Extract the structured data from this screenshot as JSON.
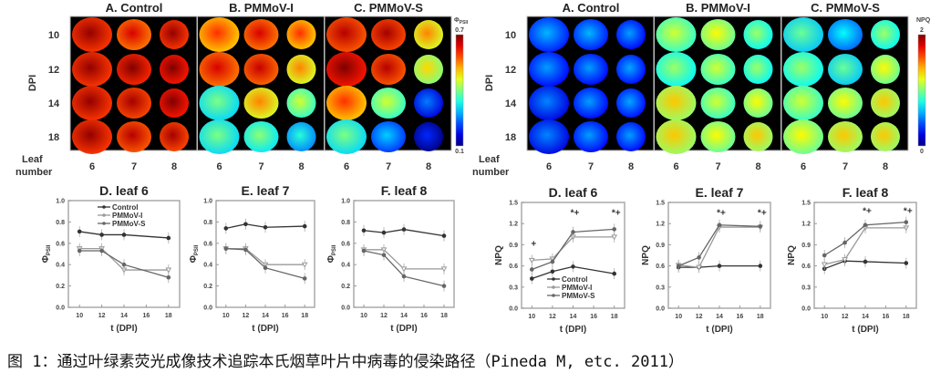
{
  "caption": "图 1：通过叶绿素荧光成像技术追踪本氏烟草叶片中病毒的侵染路径（Pineda M, etc. 2011）",
  "image_panels": [
    {
      "quantity_symbol": "Φ",
      "quantity_subscript": "PSII",
      "colorbar": {
        "max": "0.7",
        "min": "0.1",
        "range": [
          0.1,
          0.7
        ],
        "colormap": "jet"
      },
      "row_label": "DPI",
      "col_label_1": "Leaf",
      "col_label_2": "number",
      "rows": [
        "10",
        "12",
        "14",
        "18"
      ],
      "cols": [
        "6",
        "7",
        "8"
      ],
      "groups": [
        {
          "title": "A. Control",
          "values": [
            [
              0.64,
              0.6,
              0.64
            ],
            [
              0.64,
              0.65,
              0.66
            ],
            [
              0.64,
              0.63,
              0.66
            ],
            [
              0.64,
              0.62,
              0.63
            ]
          ]
        },
        {
          "title": "B. PMMoV-I",
          "values": [
            [
              0.55,
              0.6,
              0.55
            ],
            [
              0.6,
              0.61,
              0.5
            ],
            [
              0.35,
              0.5,
              0.4
            ],
            [
              0.35,
              0.36,
              0.3
            ]
          ]
        },
        {
          "title": "C. PMMoV-S",
          "values": [
            [
              0.62,
              0.63,
              0.5
            ],
            [
              0.66,
              0.62,
              0.45
            ],
            [
              0.55,
              0.4,
              0.2
            ],
            [
              0.35,
              0.25,
              0.15
            ]
          ]
        }
      ]
    },
    {
      "quantity_symbol": "NPQ",
      "quantity_subscript": "",
      "colorbar": {
        "max": "2",
        "min": "0",
        "range": [
          0,
          2
        ],
        "colormap": "jet"
      },
      "row_label": "DPI",
      "col_label_1": "Leaf",
      "col_label_2": "number",
      "rows": [
        "10",
        "12",
        "14",
        "18"
      ],
      "cols": [
        "6",
        "7",
        "8"
      ],
      "groups": [
        {
          "title": "A. Control",
          "values": [
            [
              0.45,
              0.45,
              0.4
            ],
            [
              0.4,
              0.4,
              0.42
            ],
            [
              0.35,
              0.4,
              0.42
            ],
            [
              0.35,
              0.4,
              0.4
            ]
          ]
        },
        {
          "title": "B. PMMoV-I",
          "values": [
            [
              1.0,
              1.1,
              0.9
            ],
            [
              0.9,
              1.0,
              0.9
            ],
            [
              1.2,
              1.0,
              1.1
            ],
            [
              1.2,
              1.1,
              1.2
            ]
          ]
        },
        {
          "title": "C. PMMoV-S",
          "values": [
            [
              0.8,
              0.6,
              0.9
            ],
            [
              0.9,
              0.8,
              1.1
            ],
            [
              1.0,
              1.1,
              1.2
            ],
            [
              1.1,
              1.2,
              1.2
            ]
          ]
        }
      ]
    }
  ],
  "chart_data": [
    {
      "type": "line",
      "title": "D. leaf 6",
      "xlabel": "t (DPI)",
      "ylabel": "Φ",
      "ylabel_sub": "PSII",
      "x": [
        10,
        12,
        14,
        18
      ],
      "xticks": [
        "10",
        "12",
        "14",
        "16",
        "18"
      ],
      "xlim": [
        9,
        19
      ],
      "ylim": [
        0,
        1.0
      ],
      "yticks": [
        "0.0",
        "0.2",
        "0.4",
        "0.6",
        "0.8",
        "1.0"
      ],
      "legend": "top-right",
      "series": [
        {
          "name": "Control",
          "values": [
            0.71,
            0.68,
            0.68,
            0.65
          ]
        },
        {
          "name": "PMMoV-I",
          "values": [
            0.55,
            0.55,
            0.35,
            0.35
          ]
        },
        {
          "name": "PMMoV-S",
          "values": [
            0.53,
            0.53,
            0.4,
            0.28
          ]
        }
      ],
      "annotations": []
    },
    {
      "type": "line",
      "title": "E. leaf 7",
      "xlabel": "t (DPI)",
      "ylabel": "Φ",
      "ylabel_sub": "PSII",
      "x": [
        10,
        12,
        14,
        18
      ],
      "xticks": [
        "10",
        "12",
        "14",
        "16",
        "18"
      ],
      "xlim": [
        9,
        19
      ],
      "ylim": [
        0,
        1.0
      ],
      "yticks": [
        "0.0",
        "0.2",
        "0.4",
        "0.6",
        "0.8",
        "1.0"
      ],
      "series": [
        {
          "name": "Control",
          "values": [
            0.74,
            0.78,
            0.75,
            0.76
          ]
        },
        {
          "name": "PMMoV-I",
          "values": [
            0.55,
            0.55,
            0.4,
            0.4
          ]
        },
        {
          "name": "PMMoV-S",
          "values": [
            0.55,
            0.54,
            0.37,
            0.27
          ]
        }
      ],
      "annotations": []
    },
    {
      "type": "line",
      "title": "F. leaf 8",
      "xlabel": "t (DPI)",
      "ylabel": "Φ",
      "ylabel_sub": "PSII",
      "x": [
        10,
        12,
        14,
        18
      ],
      "xticks": [
        "10",
        "12",
        "14",
        "16",
        "18"
      ],
      "xlim": [
        9,
        19
      ],
      "ylim": [
        0,
        1.0
      ],
      "yticks": [
        "0.0",
        "0.2",
        "0.4",
        "0.6",
        "0.8",
        "1.0"
      ],
      "series": [
        {
          "name": "Control",
          "values": [
            0.72,
            0.7,
            0.73,
            0.67
          ]
        },
        {
          "name": "PMMoV-I",
          "values": [
            0.54,
            0.54,
            0.36,
            0.36
          ]
        },
        {
          "name": "PMMoV-S",
          "values": [
            0.53,
            0.49,
            0.29,
            0.2
          ]
        }
      ],
      "annotations": []
    },
    {
      "type": "line",
      "title": "D. leaf 6",
      "xlabel": "t (DPI)",
      "ylabel": "NPQ",
      "ylabel_sub": "",
      "x": [
        10,
        12,
        14,
        18
      ],
      "xticks": [
        "10",
        "12",
        "14",
        "16",
        "18"
      ],
      "xlim": [
        9,
        19
      ],
      "ylim": [
        0,
        1.5
      ],
      "yticks": [
        "0.0",
        "0.3",
        "0.6",
        "0.9",
        "1.2",
        "1.5"
      ],
      "legend": "bottom-right",
      "series": [
        {
          "name": "Control",
          "values": [
            0.42,
            0.52,
            0.59,
            0.49
          ]
        },
        {
          "name": "PMMoV-I",
          "values": [
            0.68,
            0.7,
            1.01,
            1.01
          ]
        },
        {
          "name": "PMMoV-S",
          "values": [
            0.55,
            0.66,
            1.08,
            1.12
          ]
        }
      ],
      "annotations": [
        {
          "x": 10,
          "y": 0.91,
          "text": "+"
        },
        {
          "x": 14,
          "y": 1.35,
          "text": "*+"
        },
        {
          "x": 18,
          "y": 1.35,
          "text": "*+"
        }
      ]
    },
    {
      "type": "line",
      "title": "E. leaf 7",
      "xlabel": "t (DPI)",
      "ylabel": "NPQ",
      "ylabel_sub": "",
      "x": [
        10,
        12,
        14,
        18
      ],
      "xticks": [
        "10",
        "12",
        "14",
        "16",
        "18"
      ],
      "xlim": [
        9,
        19
      ],
      "ylim": [
        0,
        1.5
      ],
      "yticks": [
        "0.0",
        "0.3",
        "0.6",
        "0.9",
        "1.2",
        "1.5"
      ],
      "series": [
        {
          "name": "Control",
          "values": [
            0.58,
            0.58,
            0.6,
            0.6
          ]
        },
        {
          "name": "PMMoV-I",
          "values": [
            0.61,
            0.58,
            1.15,
            1.15
          ]
        },
        {
          "name": "PMMoV-S",
          "values": [
            0.6,
            0.72,
            1.18,
            1.16
          ]
        }
      ],
      "annotations": [
        {
          "x": 14,
          "y": 1.35,
          "text": "*+"
        },
        {
          "x": 18,
          "y": 1.35,
          "text": "*+"
        }
      ]
    },
    {
      "type": "line",
      "title": "F. leaf 8",
      "xlabel": "t (DPI)",
      "ylabel": "NPQ",
      "ylabel_sub": "",
      "x": [
        10,
        12,
        14,
        18
      ],
      "xticks": [
        "10",
        "12",
        "14",
        "16",
        "18"
      ],
      "xlim": [
        9,
        19
      ],
      "ylim": [
        0,
        1.5
      ],
      "yticks": [
        "0.0",
        "0.3",
        "0.6",
        "0.9",
        "1.2",
        "1.5"
      ],
      "series": [
        {
          "name": "Control",
          "values": [
            0.56,
            0.67,
            0.66,
            0.64
          ]
        },
        {
          "name": "PMMoV-I",
          "values": [
            0.62,
            0.69,
            1.14,
            1.14
          ]
        },
        {
          "name": "PMMoV-S",
          "values": [
            0.75,
            0.93,
            1.18,
            1.22
          ]
        }
      ],
      "annotations": [
        {
          "x": 14,
          "y": 1.38,
          "text": "*+"
        },
        {
          "x": 18,
          "y": 1.38,
          "text": "*+"
        }
      ]
    }
  ],
  "series_colors": {
    "Control": "#333333",
    "PMMoV-I": "#9a9a9a",
    "PMMoV-S": "#666666"
  }
}
